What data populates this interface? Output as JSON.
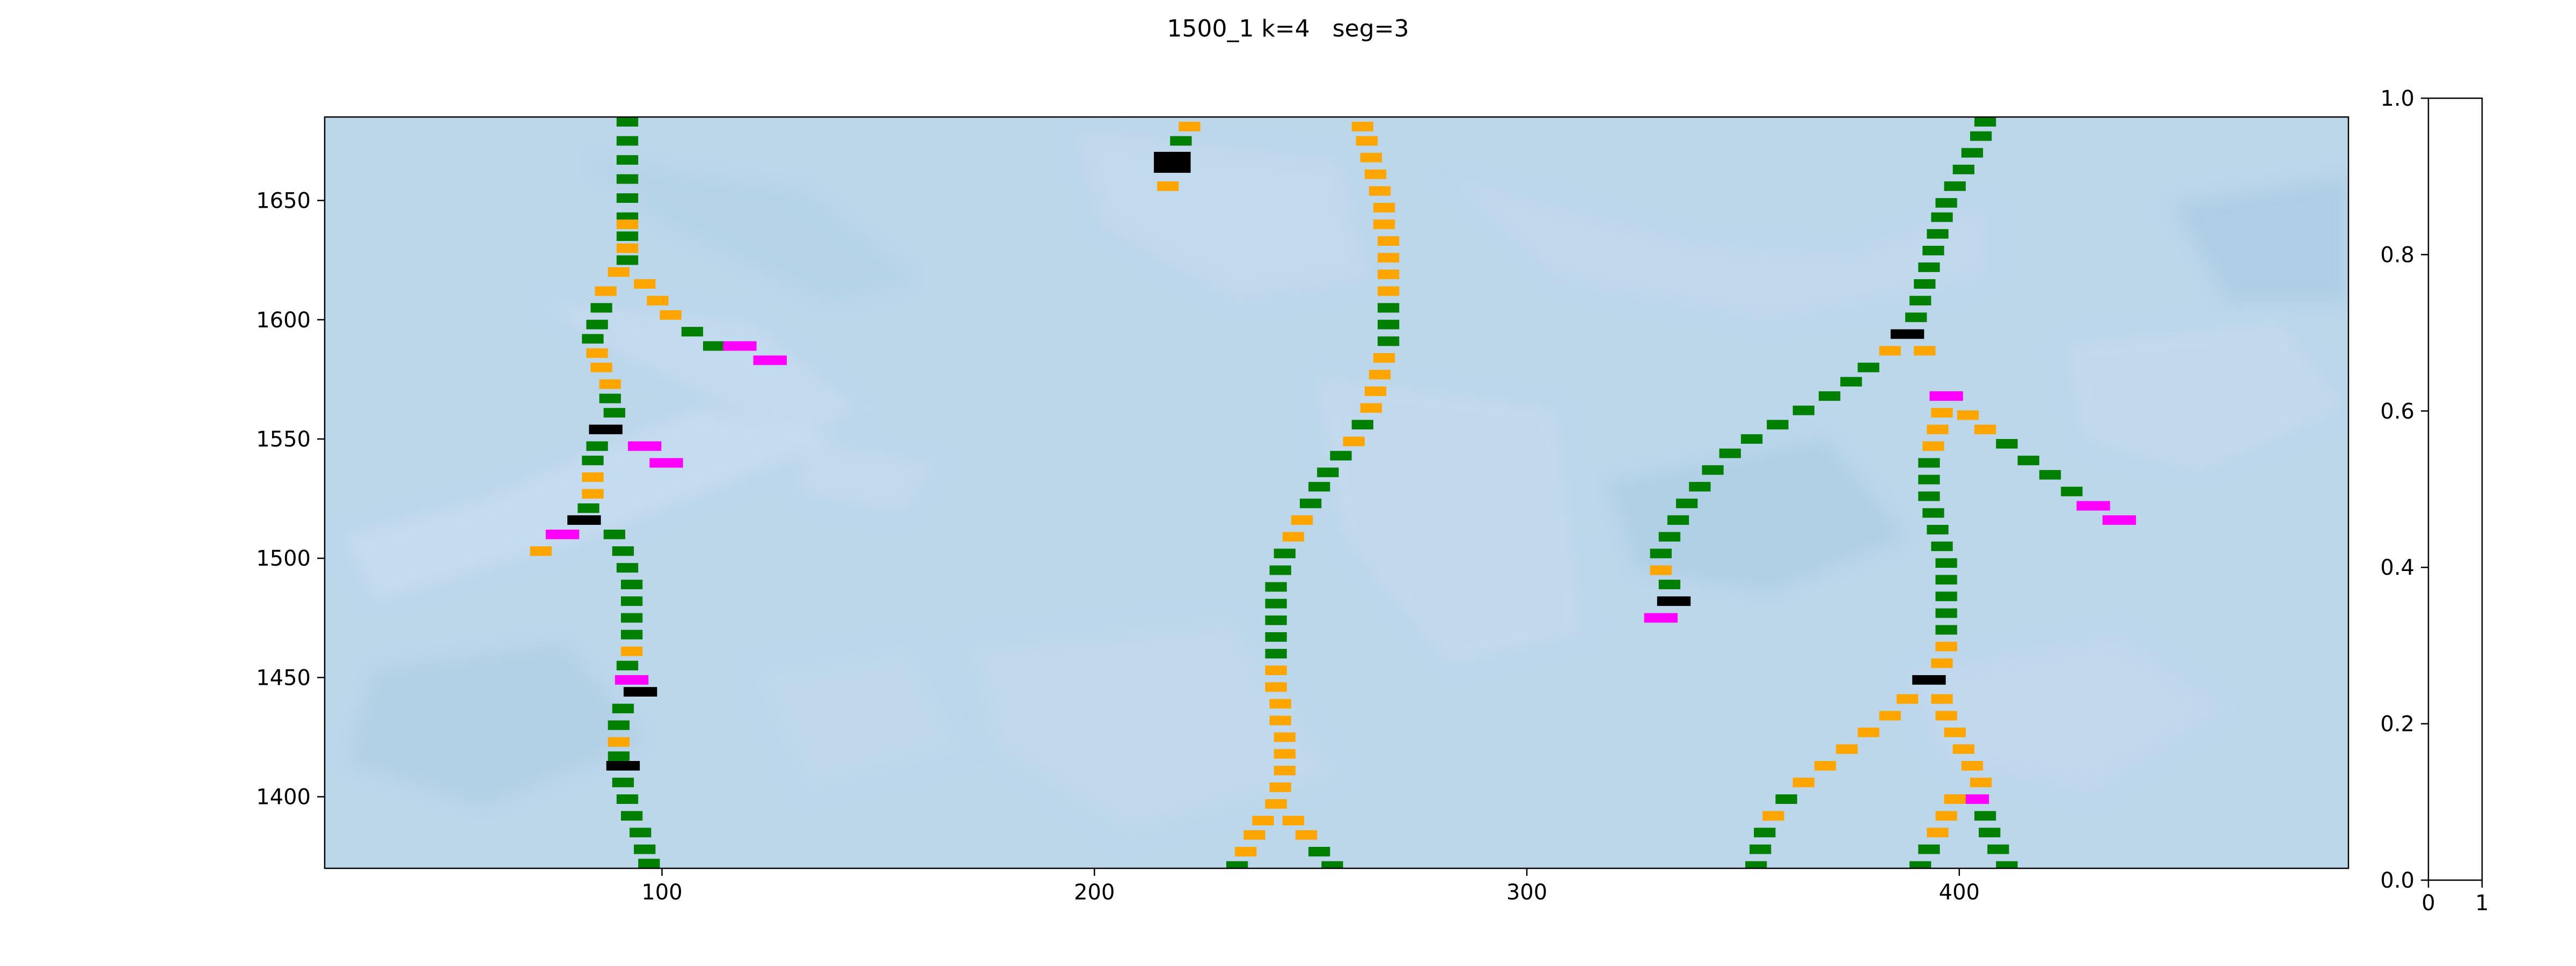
{
  "figure": {
    "title": "1500_1 k=4   seg=3"
  },
  "chart_data": {
    "type": "heatmap",
    "title": "1500_1 k=4   seg=3",
    "xlabel": "",
    "ylabel": "",
    "xlim": [
      22,
      490
    ],
    "ylim": [
      1370,
      1685
    ],
    "x_ticks": [
      100,
      200,
      300,
      400
    ],
    "y_ticks": [
      1400,
      1450,
      1500,
      1550,
      1600,
      1650
    ],
    "grid": false,
    "background_colormap": "Blues (light)",
    "cell_size": [
      5,
      4
    ],
    "colors": {
      "background": "#bcd6ea",
      "ridge_light": "#c6dcef",
      "ridge_dark": "#a9cbe2",
      "green": "#007f00",
      "orange": "#ffa500",
      "magenta": "#ff00ff",
      "black": "#000000"
    },
    "segments": [
      {
        "color": "green",
        "points": [
          [
            92,
            1683
          ],
          [
            92,
            1675
          ],
          [
            92,
            1667
          ],
          [
            92,
            1659
          ],
          [
            92,
            1651
          ],
          [
            92,
            1643
          ],
          [
            92,
            1635
          ]
        ]
      },
      {
        "color": "orange",
        "points": [
          [
            92,
            1640
          ],
          [
            92,
            1630
          ]
        ]
      },
      {
        "color": "green",
        "points": [
          [
            92,
            1625
          ]
        ]
      },
      {
        "color": "orange",
        "points": [
          [
            90,
            1620
          ],
          [
            87,
            1612
          ]
        ]
      },
      {
        "color": "green",
        "points": [
          [
            86,
            1605
          ],
          [
            85,
            1598
          ],
          [
            84,
            1592
          ]
        ]
      },
      {
        "color": "orange",
        "points": [
          [
            85,
            1586
          ],
          [
            86,
            1580
          ],
          [
            88,
            1573
          ]
        ]
      },
      {
        "color": "green",
        "points": [
          [
            88,
            1567
          ],
          [
            89,
            1561
          ]
        ]
      },
      {
        "color": "black",
        "points": [
          [
            87,
            1554
          ]
        ]
      },
      {
        "color": "green",
        "points": [
          [
            85,
            1547
          ],
          [
            84,
            1541
          ]
        ]
      },
      {
        "color": "orange",
        "points": [
          [
            84,
            1534
          ],
          [
            84,
            1527
          ]
        ]
      },
      {
        "color": "green",
        "points": [
          [
            83,
            1521
          ]
        ]
      },
      {
        "color": "black",
        "points": [
          [
            82,
            1516
          ]
        ]
      },
      {
        "color": "magenta",
        "points": [
          [
            77,
            1510
          ]
        ]
      },
      {
        "color": "orange",
        "points": [
          [
            72,
            1503
          ]
        ]
      },
      {
        "color": "green",
        "points": [
          [
            89,
            1510
          ],
          [
            91,
            1503
          ],
          [
            92,
            1496
          ],
          [
            93,
            1489
          ],
          [
            93,
            1482
          ],
          [
            93,
            1475
          ],
          [
            93,
            1468
          ]
        ]
      },
      {
        "color": "orange",
        "points": [
          [
            93,
            1461
          ]
        ]
      },
      {
        "color": "green",
        "points": [
          [
            92,
            1455
          ]
        ]
      },
      {
        "color": "magenta",
        "points": [
          [
            93,
            1449
          ]
        ]
      },
      {
        "color": "black",
        "points": [
          [
            95,
            1444
          ]
        ]
      },
      {
        "color": "green",
        "points": [
          [
            91,
            1437
          ],
          [
            90,
            1430
          ]
        ]
      },
      {
        "color": "orange",
        "points": [
          [
            90,
            1423
          ]
        ]
      },
      {
        "color": "green",
        "points": [
          [
            90,
            1417
          ]
        ]
      },
      {
        "color": "black",
        "points": [
          [
            91,
            1413
          ]
        ]
      },
      {
        "color": "green",
        "points": [
          [
            91,
            1406
          ],
          [
            92,
            1399
          ],
          [
            93,
            1392
          ],
          [
            95,
            1385
          ],
          [
            96,
            1378
          ],
          [
            97,
            1372
          ]
        ]
      },
      {
        "color": "orange",
        "points": [
          [
            96,
            1615
          ],
          [
            99,
            1608
          ],
          [
            102,
            1602
          ]
        ]
      },
      {
        "color": "green",
        "points": [
          [
            107,
            1595
          ],
          [
            112,
            1589
          ]
        ]
      },
      {
        "color": "magenta",
        "points": [
          [
            118,
            1589
          ],
          [
            125,
            1583
          ]
        ]
      },
      {
        "color": "magenta",
        "points": [
          [
            96,
            1547
          ],
          [
            101,
            1540
          ]
        ]
      },
      {
        "color": "orange",
        "points": [
          [
            222,
            1681
          ]
        ]
      },
      {
        "color": "green",
        "points": [
          [
            220,
            1675
          ]
        ]
      },
      {
        "color": "black",
        "points": [
          [
            218,
            1666
          ]
        ]
      },
      {
        "color": "orange",
        "points": [
          [
            217,
            1656
          ]
        ]
      },
      {
        "color": "orange",
        "points": [
          [
            262,
            1681
          ],
          [
            263,
            1675
          ],
          [
            264,
            1668
          ],
          [
            265,
            1661
          ],
          [
            266,
            1654
          ],
          [
            267,
            1647
          ],
          [
            267,
            1640
          ],
          [
            268,
            1633
          ],
          [
            268,
            1626
          ],
          [
            268,
            1619
          ],
          [
            268,
            1612
          ]
        ]
      },
      {
        "color": "green",
        "points": [
          [
            268,
            1605
          ],
          [
            268,
            1598
          ],
          [
            268,
            1591
          ]
        ]
      },
      {
        "color": "orange",
        "points": [
          [
            267,
            1584
          ],
          [
            266,
            1577
          ],
          [
            265,
            1570
          ],
          [
            264,
            1563
          ]
        ]
      },
      {
        "color": "green",
        "points": [
          [
            262,
            1556
          ]
        ]
      },
      {
        "color": "orange",
        "points": [
          [
            260,
            1549
          ]
        ]
      },
      {
        "color": "green",
        "points": [
          [
            257,
            1543
          ],
          [
            254,
            1536
          ],
          [
            252,
            1530
          ],
          [
            250,
            1523
          ]
        ]
      },
      {
        "color": "orange",
        "points": [
          [
            248,
            1516
          ],
          [
            246,
            1509
          ]
        ]
      },
      {
        "color": "green",
        "points": [
          [
            244,
            1502
          ],
          [
            243,
            1495
          ],
          [
            242,
            1488
          ],
          [
            242,
            1481
          ],
          [
            242,
            1474
          ],
          [
            242,
            1467
          ],
          [
            242,
            1460
          ]
        ]
      },
      {
        "color": "orange",
        "points": [
          [
            242,
            1453
          ],
          [
            242,
            1446
          ],
          [
            243,
            1439
          ],
          [
            243,
            1432
          ],
          [
            244,
            1425
          ],
          [
            244,
            1418
          ],
          [
            244,
            1411
          ],
          [
            243,
            1404
          ],
          [
            242,
            1397
          ]
        ]
      },
      {
        "color": "orange",
        "points": [
          [
            239,
            1390
          ],
          [
            237,
            1384
          ],
          [
            235,
            1377
          ]
        ]
      },
      {
        "color": "green",
        "points": [
          [
            233,
            1371
          ]
        ]
      },
      {
        "color": "orange",
        "points": [
          [
            246,
            1390
          ],
          [
            249,
            1384
          ]
        ]
      },
      {
        "color": "green",
        "points": [
          [
            252,
            1377
          ],
          [
            255,
            1371
          ]
        ]
      },
      {
        "color": "green",
        "points": [
          [
            406,
            1683
          ],
          [
            405,
            1677
          ],
          [
            403,
            1670
          ],
          [
            401,
            1663
          ],
          [
            399,
            1656
          ],
          [
            397,
            1649
          ],
          [
            396,
            1643
          ],
          [
            395,
            1636
          ],
          [
            394,
            1629
          ],
          [
            393,
            1622
          ],
          [
            392,
            1615
          ],
          [
            391,
            1608
          ],
          [
            390,
            1601
          ]
        ]
      },
      {
        "color": "black",
        "points": [
          [
            388,
            1594
          ]
        ]
      },
      {
        "color": "orange",
        "points": [
          [
            384,
            1587
          ]
        ]
      },
      {
        "color": "orange",
        "points": [
          [
            392,
            1587
          ]
        ]
      },
      {
        "color": "green",
        "points": [
          [
            379,
            1580
          ],
          [
            375,
            1574
          ],
          [
            370,
            1568
          ],
          [
            364,
            1562
          ],
          [
            358,
            1556
          ],
          [
            352,
            1550
          ],
          [
            347,
            1544
          ],
          [
            343,
            1537
          ],
          [
            340,
            1530
          ],
          [
            337,
            1523
          ],
          [
            335,
            1516
          ],
          [
            333,
            1509
          ],
          [
            331,
            1502
          ]
        ]
      },
      {
        "color": "orange",
        "points": [
          [
            331,
            1495
          ]
        ]
      },
      {
        "color": "green",
        "points": [
          [
            333,
            1489
          ]
        ]
      },
      {
        "color": "black",
        "points": [
          [
            334,
            1482
          ]
        ]
      },
      {
        "color": "magenta",
        "points": [
          [
            331,
            1475
          ]
        ]
      },
      {
        "color": "magenta",
        "points": [
          [
            397,
            1568
          ]
        ]
      },
      {
        "color": "orange",
        "points": [
          [
            402,
            1560
          ],
          [
            406,
            1554
          ]
        ]
      },
      {
        "color": "green",
        "points": [
          [
            411,
            1548
          ],
          [
            416,
            1541
          ],
          [
            421,
            1535
          ],
          [
            426,
            1528
          ]
        ]
      },
      {
        "color": "magenta",
        "points": [
          [
            431,
            1522
          ],
          [
            437,
            1516
          ]
        ]
      },
      {
        "color": "orange",
        "points": [
          [
            396,
            1561
          ],
          [
            395,
            1554
          ],
          [
            394,
            1547
          ]
        ]
      },
      {
        "color": "green",
        "points": [
          [
            393,
            1540
          ],
          [
            393,
            1533
          ],
          [
            393,
            1526
          ],
          [
            394,
            1519
          ],
          [
            395,
            1512
          ],
          [
            396,
            1505
          ],
          [
            397,
            1498
          ],
          [
            397,
            1491
          ],
          [
            397,
            1484
          ],
          [
            397,
            1477
          ],
          [
            397,
            1470
          ]
        ]
      },
      {
        "color": "orange",
        "points": [
          [
            397,
            1463
          ],
          [
            396,
            1456
          ]
        ]
      },
      {
        "color": "black",
        "points": [
          [
            393,
            1449
          ]
        ]
      },
      {
        "color": "orange",
        "points": [
          [
            396,
            1441
          ],
          [
            397,
            1434
          ],
          [
            399,
            1427
          ],
          [
            401,
            1420
          ],
          [
            403,
            1413
          ],
          [
            405,
            1406
          ]
        ]
      },
      {
        "color": "magenta",
        "points": [
          [
            403,
            1399
          ]
        ]
      },
      {
        "color": "green",
        "points": [
          [
            406,
            1392
          ],
          [
            407,
            1385
          ],
          [
            409,
            1378
          ],
          [
            411,
            1371
          ]
        ]
      },
      {
        "color": "orange",
        "points": [
          [
            388,
            1441
          ],
          [
            384,
            1434
          ],
          [
            379,
            1427
          ],
          [
            374,
            1420
          ],
          [
            369,
            1413
          ],
          [
            364,
            1406
          ]
        ]
      },
      {
        "color": "green",
        "points": [
          [
            360,
            1399
          ]
        ]
      },
      {
        "color": "orange",
        "points": [
          [
            357,
            1392
          ]
        ]
      },
      {
        "color": "green",
        "points": [
          [
            355,
            1385
          ],
          [
            354,
            1378
          ],
          [
            353,
            1371
          ]
        ]
      },
      {
        "color": "orange",
        "points": [
          [
            399,
            1399
          ],
          [
            397,
            1392
          ],
          [
            395,
            1385
          ]
        ]
      },
      {
        "color": "green",
        "points": [
          [
            393,
            1378
          ],
          [
            391,
            1371
          ]
        ]
      }
    ]
  },
  "colorbar": {
    "ticks": [
      "0.0",
      "0.2",
      "0.4",
      "0.6",
      "0.8",
      "1.0"
    ],
    "x_ticks": [
      "0",
      "1"
    ],
    "range": [
      0,
      1
    ]
  }
}
